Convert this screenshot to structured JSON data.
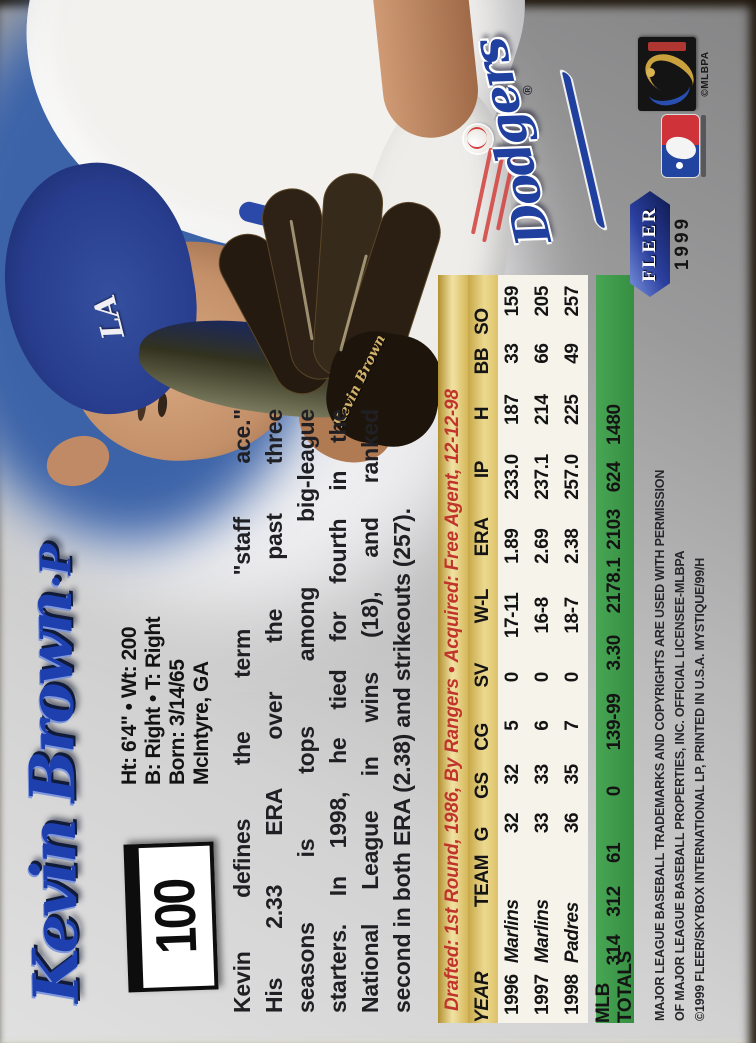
{
  "card": {
    "player": {
      "name": "Kevin Brown",
      "position_suffix": "·P"
    },
    "card_number": "100",
    "bio_lines": [
      "Ht: 6'4\" • Wt: 200",
      "B: Right • T: Right",
      "Born: 3/14/65",
      "McIntyre, GA"
    ],
    "description_lines": [
      "Kevin defines the term \"staff ace.\"",
      "His 2.33 ERA over the past three",
      "seasons is tops among big-league",
      "starters. In 1998, he tied for fourth in the",
      "National League in wins (18), and ranked",
      "second in both ERA (2.38) and strikeouts (257)."
    ],
    "transactions": "Drafted: 1st Round, 1986, By Rangers • Acquired: Free Agent, 12-12-98",
    "stats": {
      "headers": [
        "YEAR",
        "TEAM",
        "G",
        "GS",
        "CG",
        "SV",
        "W-L",
        "ERA",
        "IP",
        "H",
        "BB",
        "SO"
      ],
      "rows": [
        {
          "cells": [
            "1996",
            "Marlins",
            "32",
            "32",
            "5",
            "0",
            "17-11",
            "1.89",
            "233.0",
            "187",
            "33",
            "159"
          ]
        },
        {
          "cells": [
            "1997",
            "Marlins",
            "33",
            "33",
            "6",
            "0",
            "16-8",
            "2.69",
            "237.1",
            "214",
            "66",
            "205"
          ]
        },
        {
          "cells": [
            "1998",
            "Padres",
            "36",
            "35",
            "7",
            "0",
            "18-7",
            "2.38",
            "257.0",
            "225",
            "49",
            "257"
          ]
        }
      ],
      "totals": {
        "cells": [
          "MLB TOTALS",
          "314",
          "312",
          "61",
          "0",
          "139-99",
          "3.30",
          "2178.1",
          "2103",
          "624",
          "1480"
        ]
      }
    },
    "copyright_lines": [
      "MAJOR LEAGUE BASEBALL TRADEMARKS AND COPYRIGHTS ARE USED WITH PERMISSION",
      "OF MAJOR LEAGUE BASEBALL PROPERTIES, INC. OFFICIAL LICENSEE-MLBPA",
      "©1999 FLEER/SKYBOX INTERNATIONAL LP, PRINTED IN U.S.A.  MYSTIQUE/99/H"
    ],
    "logos": {
      "team": {
        "name": "Dodgers",
        "registered": "®"
      },
      "fleer": {
        "brand": "FLEER",
        "year": "1999"
      },
      "mlbpa": {
        "caption": "©MLBPA"
      }
    },
    "photo": {
      "cap_logo": "LA",
      "glove_signature": "Kevin Brown"
    },
    "colors": {
      "accent_blue": "#1e3fae",
      "gold": "#dfc268",
      "green": "#3f9b4b",
      "red": "#c0342b"
    }
  }
}
